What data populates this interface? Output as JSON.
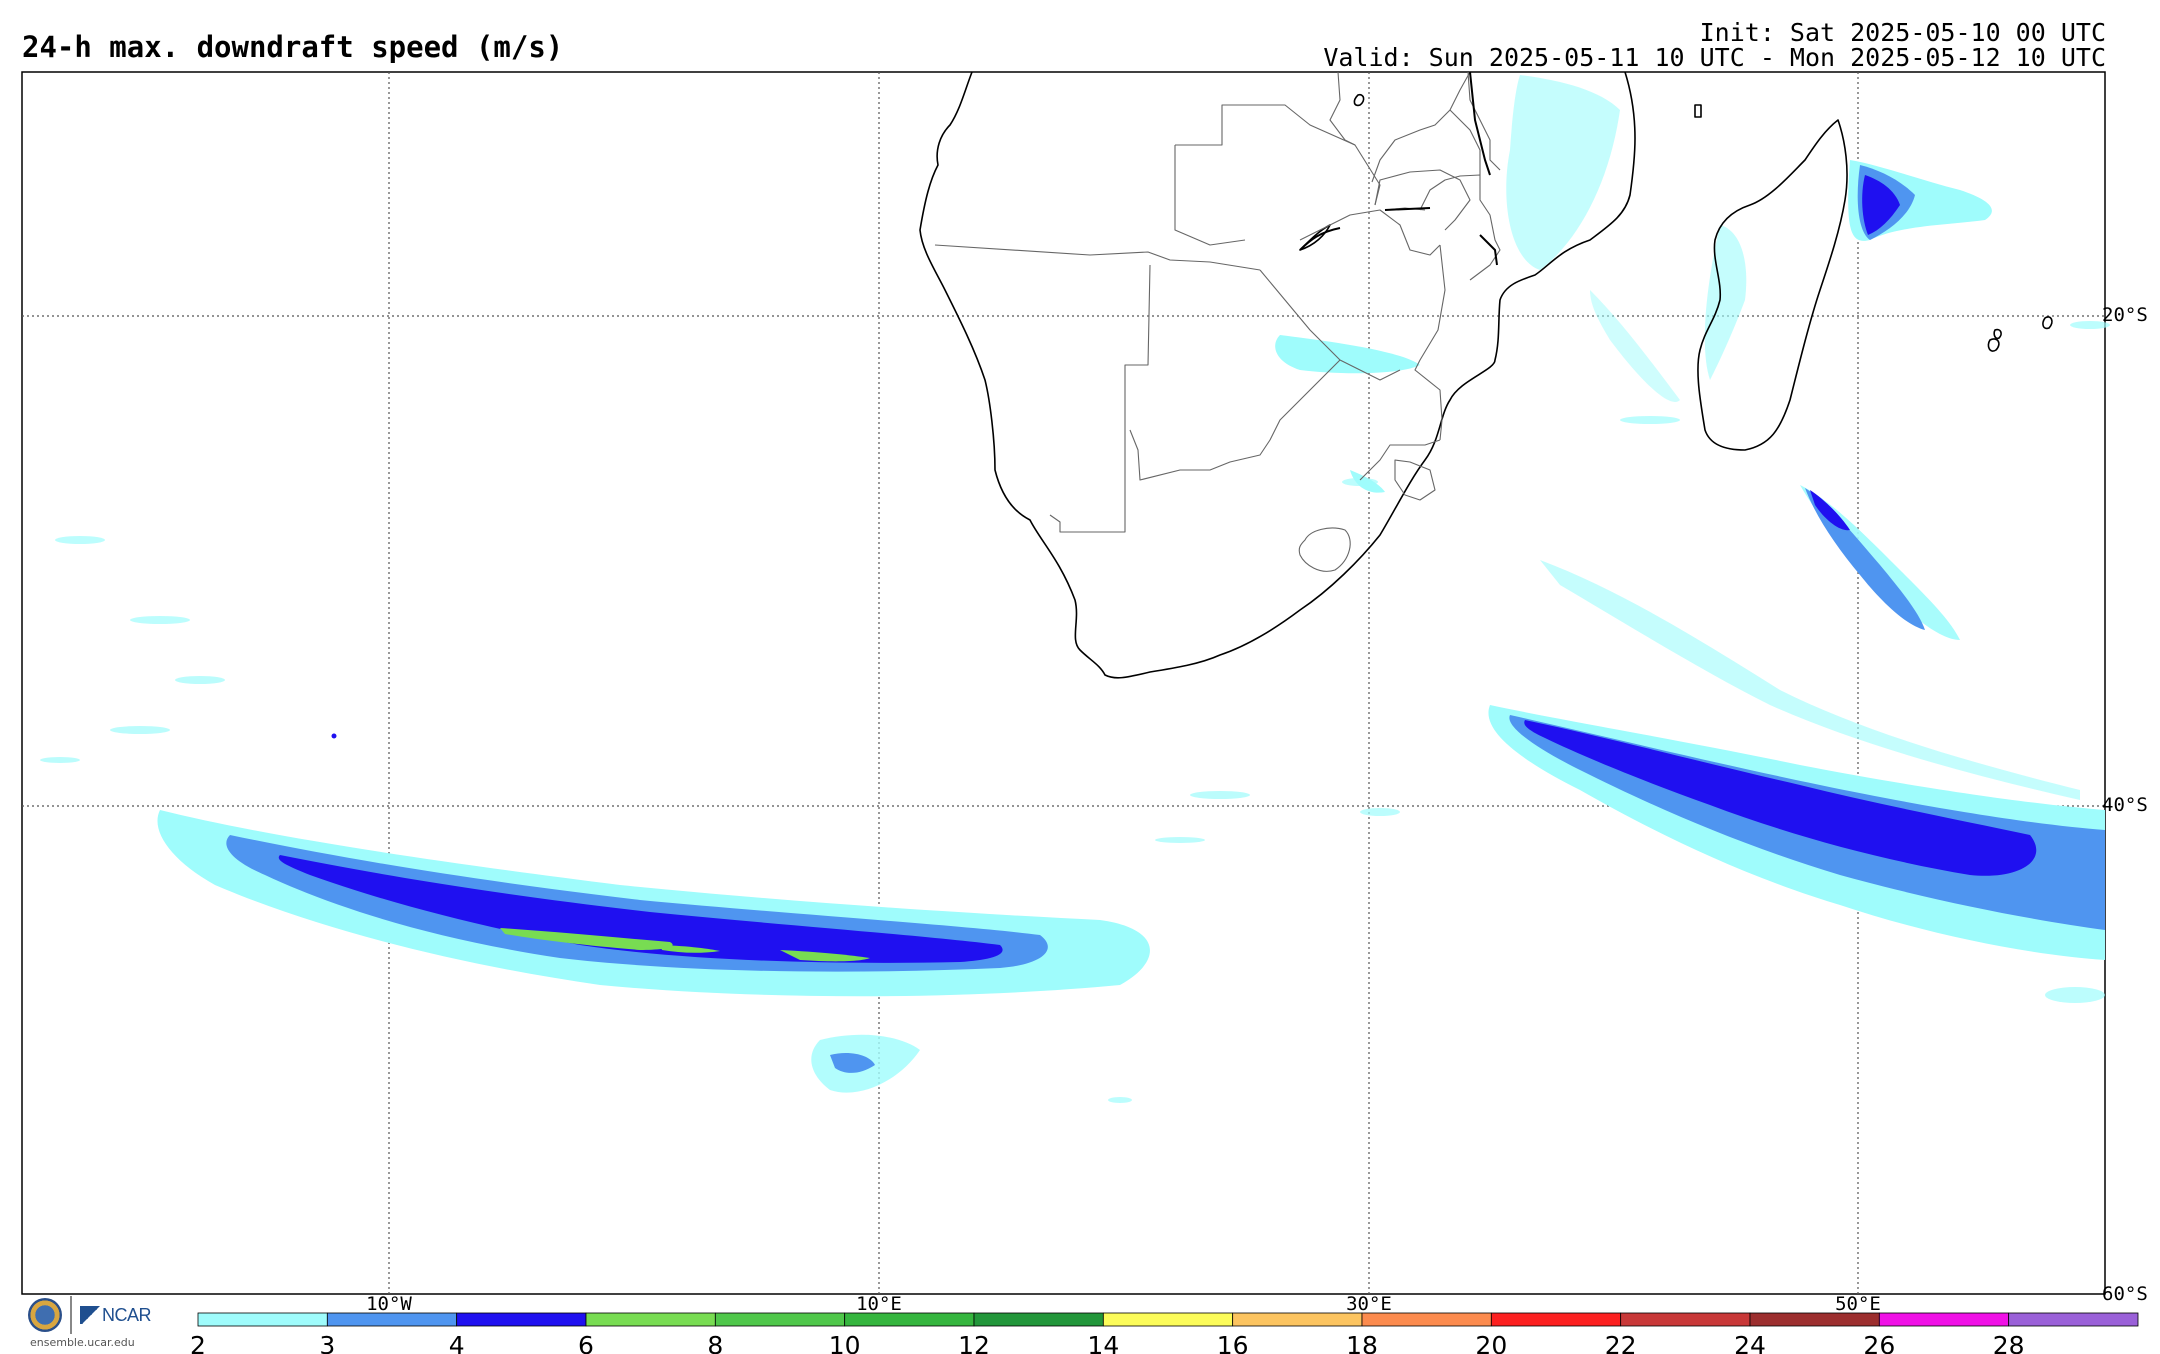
{
  "title": "24-h max. downdraft speed (m/s)",
  "init": "Init: Sat 2025-05-10 00 UTC",
  "valid": "Valid: Sun 2025-05-11 10 UTC - Mon 2025-05-12 10 UTC",
  "lat_labels": [
    "20°S",
    "40°S",
    "60°S"
  ],
  "lon_labels": [
    "10°W",
    "10°E",
    "30°E",
    "50°E"
  ],
  "colorbar": {
    "ticks": [
      "2",
      "3",
      "4",
      "6",
      "8",
      "10",
      "12",
      "14",
      "16",
      "18",
      "20",
      "22",
      "24",
      "26",
      "28"
    ],
    "colors": [
      "#9ffcfc",
      "#4f95f0",
      "#1f10f0",
      "#78dc52",
      "#4fc74a",
      "#35b53e",
      "#22963a",
      "#fcfc5a",
      "#fcc460",
      "#fc8b4e",
      "#fc2020",
      "#c83838",
      "#9c2e2e",
      "#f010e6",
      "#9a60d8"
    ]
  },
  "logos": {
    "seal_icon": "nsf-seal-icon",
    "ncar_text": "NCAR",
    "url": "ensemble.ucar.edu"
  }
}
